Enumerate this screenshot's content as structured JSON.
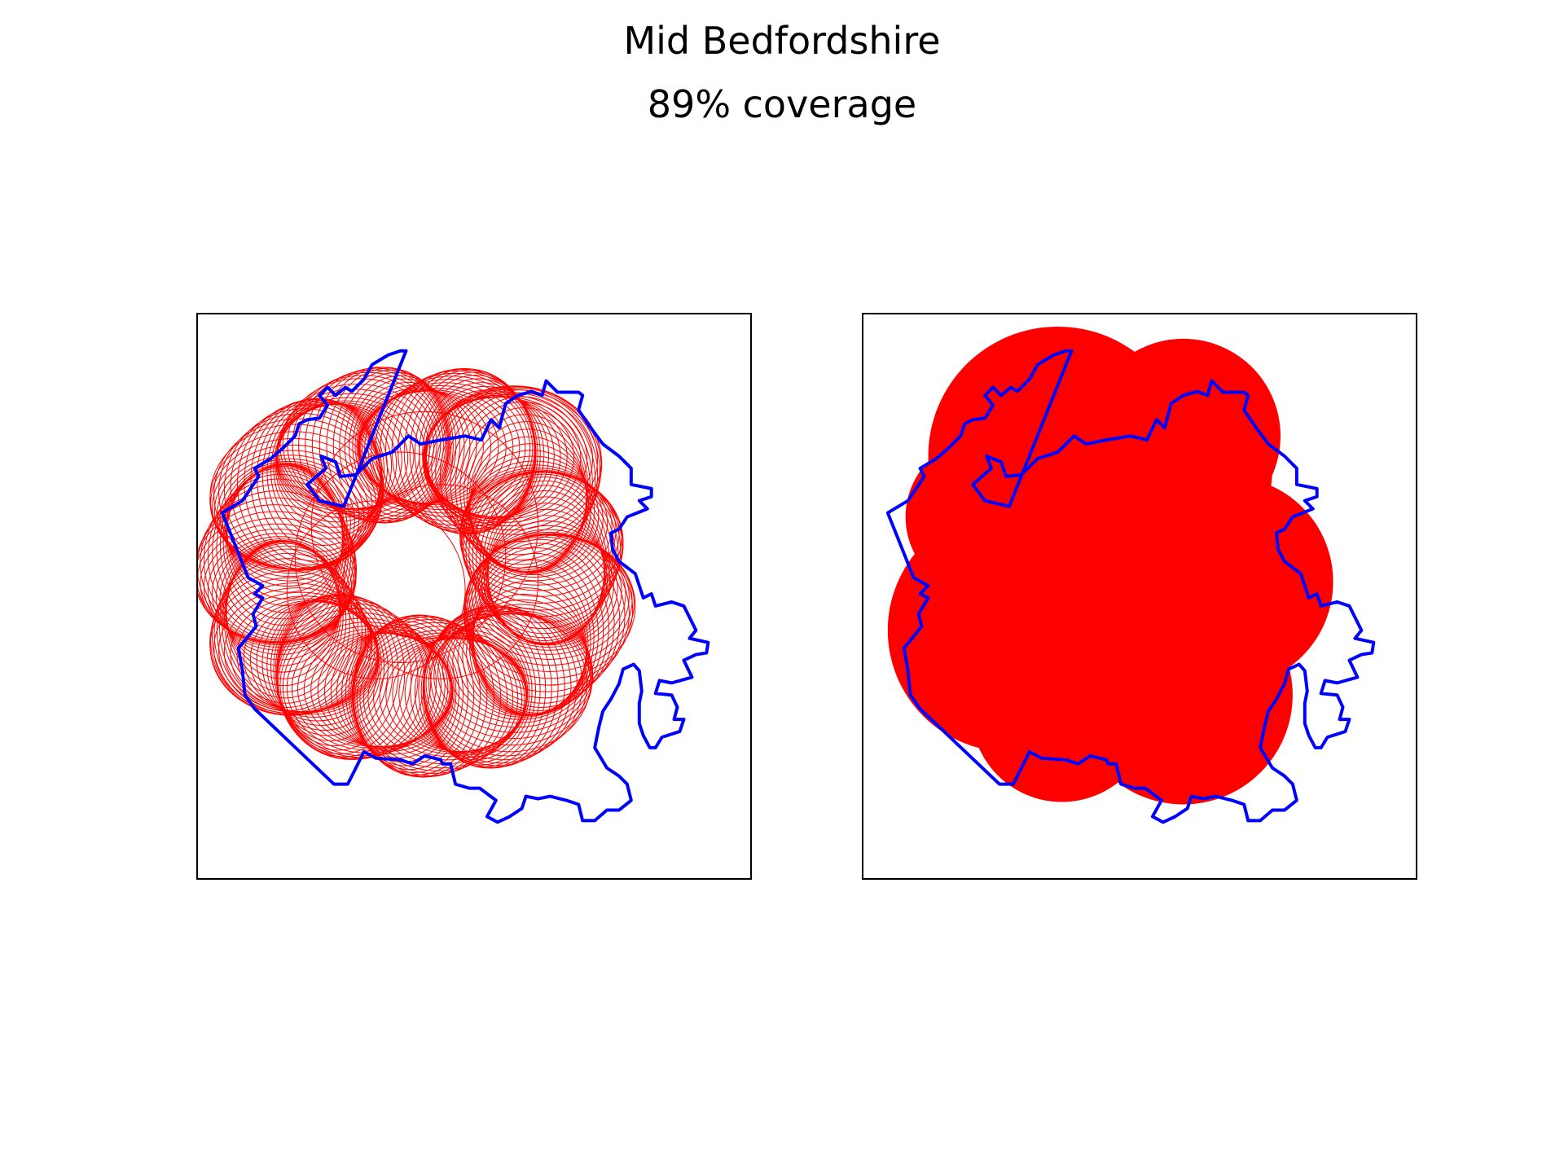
{
  "title": "Mid Bedfordshire",
  "subtitle": "89% coverage",
  "colors": {
    "boundary": "#0000ff",
    "coverage": "#ff0000",
    "frame": "#000000",
    "background": "#ffffff"
  },
  "panels": [
    {
      "name": "circle-outlines",
      "style": "outline"
    },
    {
      "name": "coverage-filled",
      "style": "filled"
    }
  ],
  "coverage_percent": 89
}
